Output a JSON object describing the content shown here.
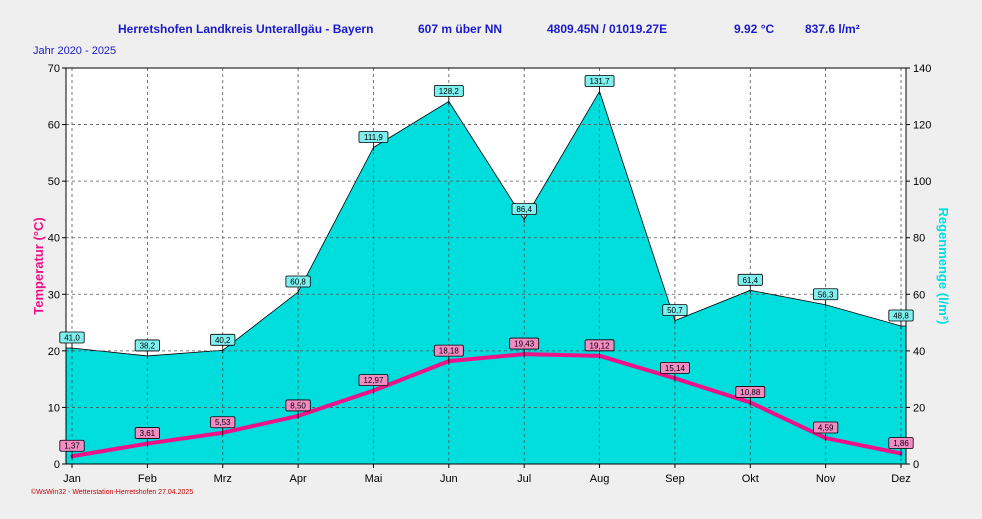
{
  "header": {
    "station": "Herretshofen Landkreis Unterallgäu - Bayern",
    "altitude": "607 m über NN",
    "coords": "4809.45N / 01019.27E",
    "avg_temp": "9.92 °C",
    "total_rain": "837.6 l/m²",
    "period": "Jahr  2020 - 2025"
  },
  "footer": "©WsWin32 - Wetterstation-Herretshofen 27.04.2025",
  "colors": {
    "temp": "#ee1188",
    "rain": "#00dddd",
    "title": "#1a1acc"
  },
  "chart_data": {
    "type": "line+area",
    "categories": [
      "Jan",
      "Feb",
      "Mrz",
      "Apr",
      "Mai",
      "Jun",
      "Jul",
      "Aug",
      "Sep",
      "Okt",
      "Nov",
      "Dez"
    ],
    "series": [
      {
        "name": "Temperatur",
        "axis": "left",
        "values": [
          1.37,
          3.61,
          5.53,
          8.5,
          12.97,
          18.18,
          19.43,
          19.12,
          15.14,
          10.88,
          4.59,
          1.86
        ],
        "labels": [
          "1,37",
          "3,61",
          "5,53",
          "8,50",
          "12,97",
          "18,18",
          "19,43",
          "19,12",
          "15,14",
          "10,88",
          "4,59",
          "1,86"
        ]
      },
      {
        "name": "Regenmenge",
        "axis": "right",
        "values": [
          41.0,
          38.2,
          40.2,
          60.8,
          111.9,
          128.2,
          86.4,
          131.7,
          50.7,
          61.4,
          56.3,
          48.8
        ],
        "labels": [
          "41,0",
          "38,2",
          "40,2",
          "60,8",
          "111,9",
          "128,2",
          "86,4",
          "131,7",
          "50,7",
          "61,4",
          "56,3",
          "48,8"
        ]
      }
    ],
    "ylabel": "Temperatur (°C)",
    "y2label": "Regenmenge (l/m²)",
    "ylim": [
      0,
      70
    ],
    "y2lim": [
      0,
      140
    ],
    "yticks": [
      "0",
      "10",
      "20",
      "30",
      "40",
      "50",
      "60",
      "70"
    ],
    "y2ticks": [
      "0",
      "20",
      "40",
      "60",
      "80",
      "100",
      "120",
      "140"
    ],
    "grid": true
  }
}
